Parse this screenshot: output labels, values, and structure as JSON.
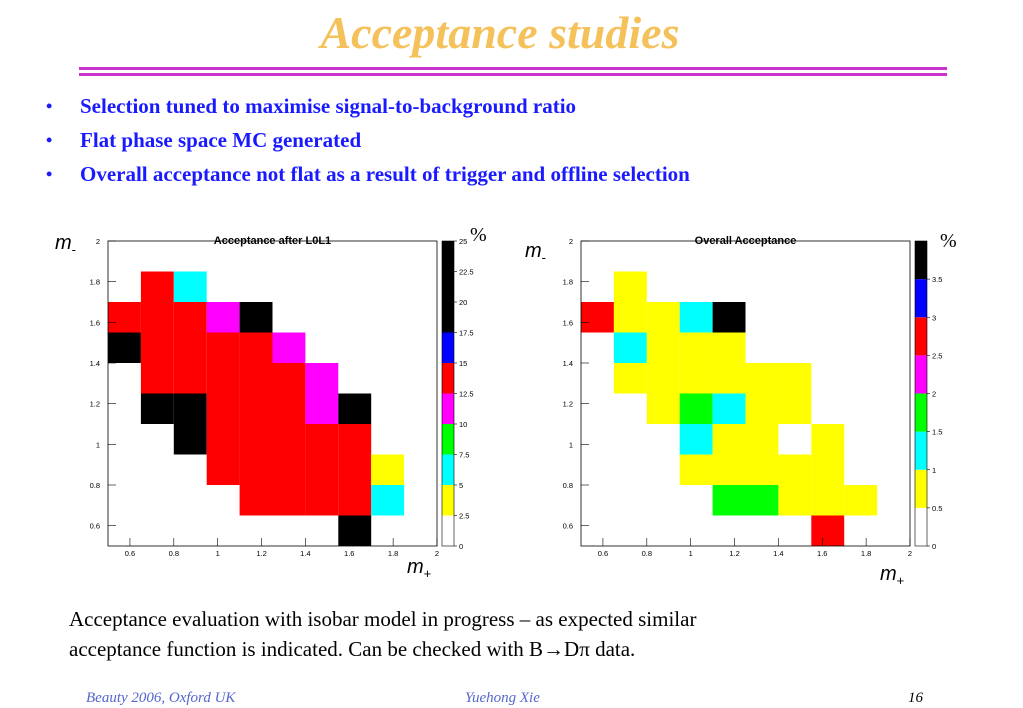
{
  "slide": {
    "title": "Acceptance studies",
    "bullets": [
      "Selection tuned to maximise signal-to-background ratio",
      "Flat phase space MC generated",
      "Overall acceptance not flat as a result of trigger and offline selection"
    ],
    "caption_line1": "Acceptance evaluation with isobar model in progress – as expected similar",
    "caption_line2": "acceptance function is indicated. Can be checked with B→Dπ data.",
    "footer_left": "Beauty 2006, Oxford UK",
    "footer_center": "Yuehong Xie",
    "footer_right": "16",
    "axis_label_y": "m",
    "axis_label_y_sub": "-",
    "axis_label_x": "m",
    "axis_label_x_sub": "+",
    "percent_label": "%",
    "colors": {
      "title": "#f5c15a",
      "bullets": "#1a1aff",
      "rule": "#cc33cc",
      "footer": "#5566cc"
    }
  },
  "chart_data": [
    {
      "type": "heatmap",
      "title": "Acceptance after L0L1",
      "xlim": [
        0.5,
        2
      ],
      "ylim": [
        0.5,
        2
      ],
      "bin_width": 0.15,
      "x_ticks": [
        "0.6",
        "0.8",
        "1",
        "1.2",
        "1.4",
        "1.6",
        "1.8",
        "2"
      ],
      "y_ticks": [
        "0.6",
        "0.8",
        "1",
        "1.2",
        "1.4",
        "1.6",
        "1.8",
        "2"
      ],
      "colorbar_ticks": [
        "0",
        "2.5",
        "5",
        "7.5",
        "10",
        "12.5",
        "15",
        "17.5",
        "20",
        "22.5",
        "25"
      ],
      "colorbar_colors": [
        "#ffffff",
        "#ffff00",
        "#00ffff",
        "#00ff00",
        "#ff00ff",
        "#ff0000",
        "#0000ff",
        "#000000"
      ],
      "colorbar_levels": [
        0,
        2.5,
        5,
        7.5,
        10,
        12.5,
        15,
        17.5,
        20
      ],
      "colorbar_max": 25,
      "cells": [
        {
          "x": 0.725,
          "y": 1.775,
          "z": 13
        },
        {
          "x": 0.875,
          "y": 1.775,
          "z": 6
        },
        {
          "x": 0.575,
          "y": 1.625,
          "z": 13
        },
        {
          "x": 0.725,
          "y": 1.625,
          "z": 13
        },
        {
          "x": 0.875,
          "y": 1.625,
          "z": 13
        },
        {
          "x": 1.025,
          "y": 1.625,
          "z": 11
        },
        {
          "x": 1.175,
          "y": 1.625,
          "z": 18
        },
        {
          "x": 0.575,
          "y": 1.475,
          "z": 23
        },
        {
          "x": 0.725,
          "y": 1.475,
          "z": 13
        },
        {
          "x": 0.875,
          "y": 1.475,
          "z": 13
        },
        {
          "x": 1.025,
          "y": 1.475,
          "z": 13
        },
        {
          "x": 1.175,
          "y": 1.475,
          "z": 13
        },
        {
          "x": 1.325,
          "y": 1.475,
          "z": 11
        },
        {
          "x": 0.725,
          "y": 1.325,
          "z": 13
        },
        {
          "x": 0.875,
          "y": 1.325,
          "z": 13
        },
        {
          "x": 1.025,
          "y": 1.325,
          "z": 13
        },
        {
          "x": 1.175,
          "y": 1.325,
          "z": 13
        },
        {
          "x": 1.325,
          "y": 1.325,
          "z": 13
        },
        {
          "x": 1.475,
          "y": 1.325,
          "z": 11
        },
        {
          "x": 0.725,
          "y": 1.175,
          "z": 21
        },
        {
          "x": 0.875,
          "y": 1.175,
          "z": 18
        },
        {
          "x": 1.025,
          "y": 1.175,
          "z": 13
        },
        {
          "x": 1.175,
          "y": 1.175,
          "z": 13
        },
        {
          "x": 1.325,
          "y": 1.175,
          "z": 13
        },
        {
          "x": 1.475,
          "y": 1.175,
          "z": 11
        },
        {
          "x": 1.625,
          "y": 1.175,
          "z": 21
        },
        {
          "x": 0.875,
          "y": 1.025,
          "z": 18
        },
        {
          "x": 1.025,
          "y": 1.025,
          "z": 13
        },
        {
          "x": 1.175,
          "y": 1.025,
          "z": 13
        },
        {
          "x": 1.325,
          "y": 1.025,
          "z": 13
        },
        {
          "x": 1.475,
          "y": 1.025,
          "z": 13
        },
        {
          "x": 1.625,
          "y": 1.025,
          "z": 13
        },
        {
          "x": 1.025,
          "y": 0.875,
          "z": 13
        },
        {
          "x": 1.175,
          "y": 0.875,
          "z": 13
        },
        {
          "x": 1.325,
          "y": 0.875,
          "z": 13
        },
        {
          "x": 1.475,
          "y": 0.875,
          "z": 13
        },
        {
          "x": 1.625,
          "y": 0.875,
          "z": 13
        },
        {
          "x": 1.775,
          "y": 0.875,
          "z": 3
        },
        {
          "x": 1.175,
          "y": 0.725,
          "z": 13
        },
        {
          "x": 1.325,
          "y": 0.725,
          "z": 13
        },
        {
          "x": 1.475,
          "y": 0.725,
          "z": 13
        },
        {
          "x": 1.625,
          "y": 0.725,
          "z": 13
        },
        {
          "x": 1.775,
          "y": 0.725,
          "z": 6
        },
        {
          "x": 1.625,
          "y": 0.575,
          "z": 18
        }
      ]
    },
    {
      "type": "heatmap",
      "title": "Overall Acceptance",
      "xlim": [
        0.5,
        2
      ],
      "ylim": [
        0.5,
        2
      ],
      "bin_width": 0.15,
      "x_ticks": [
        "0.6",
        "0.8",
        "1",
        "1.2",
        "1.4",
        "1.6",
        "1.8",
        "2"
      ],
      "y_ticks": [
        "0.6",
        "0.8",
        "1",
        "1.2",
        "1.4",
        "1.6",
        "1.8",
        "2"
      ],
      "colorbar_ticks": [
        "0",
        "0.5",
        "1",
        "1.5",
        "2",
        "2.5",
        "3",
        "3.5"
      ],
      "colorbar_colors": [
        "#ffffff",
        "#ffff00",
        "#00ffff",
        "#00ff00",
        "#ff00ff",
        "#ff0000",
        "#0000ff",
        "#000000"
      ],
      "colorbar_levels": [
        0,
        0.5,
        1,
        1.5,
        2,
        2.5,
        3,
        3.5
      ],
      "colorbar_max": 4,
      "cells": [
        {
          "x": 0.725,
          "y": 1.775,
          "z": 0.7
        },
        {
          "x": 0.575,
          "y": 1.625,
          "z": 2.7
        },
        {
          "x": 0.725,
          "y": 1.625,
          "z": 0.7
        },
        {
          "x": 0.875,
          "y": 1.625,
          "z": 0.7
        },
        {
          "x": 1.025,
          "y": 1.625,
          "z": 1.2
        },
        {
          "x": 1.175,
          "y": 1.625,
          "z": 3.7
        },
        {
          "x": 0.725,
          "y": 1.475,
          "z": 1.2
        },
        {
          "x": 0.875,
          "y": 1.475,
          "z": 0.7
        },
        {
          "x": 1.025,
          "y": 1.475,
          "z": 0.7
        },
        {
          "x": 1.175,
          "y": 1.475,
          "z": 0.7
        },
        {
          "x": 0.725,
          "y": 1.325,
          "z": 0.7
        },
        {
          "x": 0.875,
          "y": 1.325,
          "z": 0.7
        },
        {
          "x": 1.025,
          "y": 1.325,
          "z": 0.7
        },
        {
          "x": 1.175,
          "y": 1.325,
          "z": 0.7
        },
        {
          "x": 1.325,
          "y": 1.325,
          "z": 0.7
        },
        {
          "x": 1.475,
          "y": 1.325,
          "z": 0.7
        },
        {
          "x": 0.875,
          "y": 1.175,
          "z": 0.7
        },
        {
          "x": 1.025,
          "y": 1.175,
          "z": 1.7
        },
        {
          "x": 1.175,
          "y": 1.175,
          "z": 1.2
        },
        {
          "x": 1.325,
          "y": 1.175,
          "z": 0.7
        },
        {
          "x": 1.475,
          "y": 1.175,
          "z": 0.7
        },
        {
          "x": 1.025,
          "y": 1.025,
          "z": 1.2
        },
        {
          "x": 1.175,
          "y": 1.025,
          "z": 0.7
        },
        {
          "x": 1.325,
          "y": 1.025,
          "z": 0.7
        },
        {
          "x": 1.625,
          "y": 1.025,
          "z": 0.7
        },
        {
          "x": 1.025,
          "y": 0.875,
          "z": 0.7
        },
        {
          "x": 1.175,
          "y": 0.875,
          "z": 0.7
        },
        {
          "x": 1.325,
          "y": 0.875,
          "z": 0.7
        },
        {
          "x": 1.475,
          "y": 0.875,
          "z": 0.7
        },
        {
          "x": 1.625,
          "y": 0.875,
          "z": 0.7
        },
        {
          "x": 1.175,
          "y": 0.725,
          "z": 1.7
        },
        {
          "x": 1.325,
          "y": 0.725,
          "z": 1.7
        },
        {
          "x": 1.475,
          "y": 0.725,
          "z": 0.7
        },
        {
          "x": 1.625,
          "y": 0.725,
          "z": 0.7
        },
        {
          "x": 1.775,
          "y": 0.725,
          "z": 0.7
        },
        {
          "x": 1.625,
          "y": 0.575,
          "z": 2.7
        }
      ]
    }
  ]
}
